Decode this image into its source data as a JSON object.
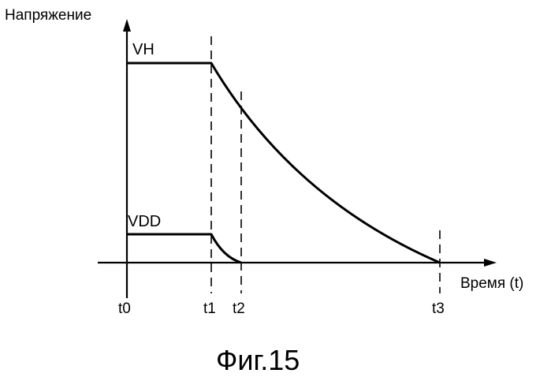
{
  "figure": {
    "y_axis_label": "Напряжение",
    "x_axis_label": "Время (t)",
    "caption": "Фиг.15"
  },
  "signals": [
    {
      "label": "VH"
    },
    {
      "label": "VDD"
    }
  ],
  "time_marks": [
    "t0",
    "t1",
    "t2",
    "t3"
  ]
}
